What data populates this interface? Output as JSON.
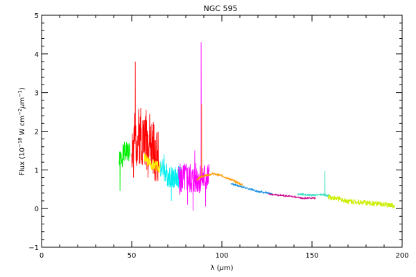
{
  "chart_data": {
    "type": "line",
    "title": "NGC 595",
    "xlabel": {
      "pre": "λ (",
      "mu": "μ",
      "post": "m)"
    },
    "ylabel": {
      "pre": "Flux (10",
      "exp1": "−18",
      "mid": " W cm",
      "exp2": "−2",
      "mu": "μ",
      "m": "m",
      "exp3": "−1",
      "post": ")"
    },
    "xlim": [
      0,
      200
    ],
    "ylim": [
      -1,
      5
    ],
    "xticks": [
      0,
      50,
      100,
      150,
      200
    ],
    "yticks": [
      -1,
      0,
      1,
      2,
      3,
      4,
      5
    ],
    "grid": false,
    "series": [
      {
        "color": "#00ee00",
        "x_range": [
          43,
          49
        ],
        "base": [
          [
            43,
            1.2
          ],
          [
            46,
            1.45
          ],
          [
            49,
            1.5
          ]
        ],
        "noise": 0.28,
        "seed": 1,
        "extra": [
          [
            43.5,
            0.45
          ]
        ]
      },
      {
        "color": "#ff0000",
        "x_range": [
          50,
          65
        ],
        "base": [
          [
            50,
            1.6
          ],
          [
            54,
            1.9
          ],
          [
            57,
            1.8
          ],
          [
            60,
            1.7
          ],
          [
            63,
            1.45
          ],
          [
            65,
            1.3
          ]
        ],
        "noise": 0.75,
        "seed": 2,
        "extra": [
          [
            51,
            0.8
          ],
          [
            52,
            3.8
          ],
          [
            55,
            2.6
          ],
          [
            58,
            2.55
          ],
          [
            59,
            0.8
          ]
        ]
      },
      {
        "color": "#ffee00",
        "x_range": [
          57,
          66
        ],
        "base": [
          [
            57,
            1.3
          ],
          [
            61,
            1.15
          ],
          [
            66,
            1.05
          ]
        ],
        "noise": 0.15,
        "seed": 3
      },
      {
        "color": "#00eeee",
        "x_range": [
          66,
          78
        ],
        "base": [
          [
            66,
            1.1
          ],
          [
            70,
            0.85
          ],
          [
            74,
            0.8
          ],
          [
            78,
            0.8
          ]
        ],
        "noise": 0.3,
        "seed": 4,
        "extra": [
          [
            68,
            1.4
          ],
          [
            72,
            0.2
          ],
          [
            76,
            1.1
          ]
        ]
      },
      {
        "color": "#ff00ff",
        "x_range": [
          76,
          93
        ],
        "base": [
          [
            76,
            0.75
          ],
          [
            80,
            0.8
          ],
          [
            84,
            0.75
          ],
          [
            88,
            0.8
          ],
          [
            93,
            0.8
          ]
        ],
        "noise": 0.42,
        "seed": 5,
        "extra": [
          [
            81,
            0.1
          ],
          [
            84,
            -0.05
          ],
          [
            85,
            1.5
          ],
          [
            88.5,
            4.3
          ],
          [
            91,
            0.05
          ]
        ]
      },
      {
        "color": "#ff9900",
        "x_range": [
          86,
          112
        ],
        "base": [
          [
            86,
            0.75
          ],
          [
            90,
            0.85
          ],
          [
            95,
            0.9
          ],
          [
            100,
            0.85
          ],
          [
            105,
            0.75
          ],
          [
            112,
            0.6
          ]
        ],
        "noise": 0.03,
        "seed": 6,
        "extra": [
          [
            88.8,
            2.7
          ],
          [
            89.0,
            0.8
          ]
        ]
      },
      {
        "color": "#1a90e0",
        "x_range": [
          105,
          128
        ],
        "base": [
          [
            105,
            0.65
          ],
          [
            112,
            0.55
          ],
          [
            120,
            0.45
          ],
          [
            128,
            0.37
          ]
        ],
        "noise": 0.025,
        "seed": 7
      },
      {
        "color": "#cc0088",
        "x_range": [
          126,
          152
        ],
        "base": [
          [
            126,
            0.37
          ],
          [
            135,
            0.33
          ],
          [
            145,
            0.27
          ],
          [
            152,
            0.27
          ]
        ],
        "noise": 0.02,
        "seed": 8
      },
      {
        "color": "#33ddc0",
        "x_range": [
          142,
          160
        ],
        "base": [
          [
            142,
            0.37
          ],
          [
            150,
            0.35
          ],
          [
            156,
            0.36
          ],
          [
            160,
            0.32
          ]
        ],
        "noise": 0.025,
        "seed": 9,
        "extra": [
          [
            157.2,
            0.97
          ],
          [
            157.6,
            0.35
          ]
        ]
      },
      {
        "color": "#ccee00",
        "x_range": [
          159,
          196
        ],
        "base": [
          [
            159,
            0.3
          ],
          [
            170,
            0.2
          ],
          [
            180,
            0.15
          ],
          [
            190,
            0.1
          ],
          [
            196,
            0.07
          ]
        ],
        "noise": 0.07,
        "seed": 10
      }
    ]
  }
}
